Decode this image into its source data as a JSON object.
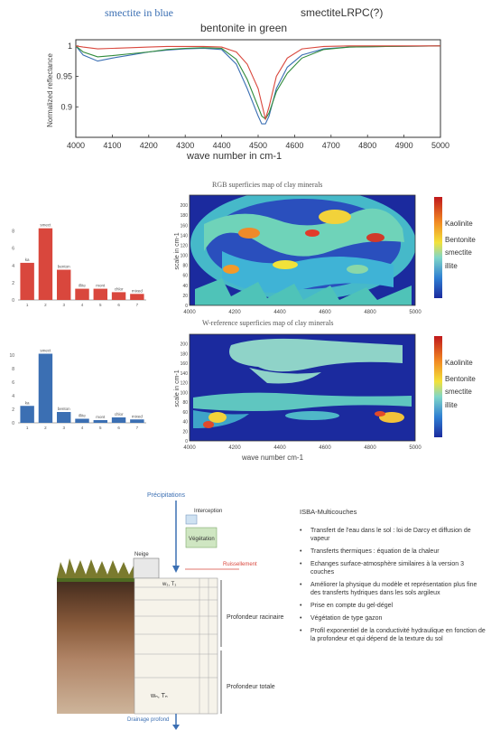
{
  "spectrum": {
    "label_blue": "smectite in blue",
    "label_lrpc": "smectiteLRPC(?)",
    "label_green": "bentonite in green",
    "ylabel": "Normalized reflectance",
    "xlabel": "wave number in cm-1",
    "colors": {
      "blue": "#3b6fb3",
      "green": "#2f8a3a",
      "red": "#d9473d"
    }
  },
  "maps": {
    "top_title": "RGB superficies map of clay minerals",
    "bottom_title": "W-reference superficies map of clay minerals",
    "top_ylabel": "scale in cm-1",
    "bottom_ylabel": "scale in cm-1",
    "bottom_xlabel": "wave number cm-1",
    "colorbar_labels": [
      "Kaolinite",
      "Bentonite",
      "smectite",
      "illite"
    ]
  },
  "histograms": {
    "top_color": "#d9473d",
    "bottom_color": "#3b6fb3"
  },
  "soil": {
    "precip_label": "Précipitations",
    "interception_label": "Interception",
    "veg_label": "Végétation",
    "ruissellement_label": "Ruissellement",
    "neige_label": "Neige",
    "profondeur_racinaire": "Profondeur racinaire",
    "profondeur_totale": "Profondeur totale",
    "drainage_label": "Drainage profond"
  },
  "notes": {
    "title": "ISBA-Multicouches",
    "items": [
      "Transfert de l'eau dans le sol : loi de Darcy et diffusion de vapeur",
      "Transferts thermiques : équation de la chaleur",
      "Echanges surface-atmosphère similaires à la version 3 couches",
      "Améliorer la physique du modèle et représentation plus fine des transferts hydriques dans les sols argileux",
      "Prise en compte du gel-dégel",
      "Végétation de type gazon",
      "Profil exponentiel de la conductivité hydraulique en fonction de la profondeur et qui dépend de la texture du sol"
    ]
  },
  "chart_data": [
    {
      "type": "line",
      "xlabel": "wave number in cm-1",
      "ylabel": "Normalized reflectance",
      "xlim": [
        4000,
        5000
      ],
      "ylim": [
        0.85,
        1.01
      ],
      "x_ticks": [
        4000,
        4100,
        4200,
        4300,
        4400,
        4500,
        4600,
        4700,
        4800,
        4900,
        5000
      ],
      "y_ticks": [
        1,
        0.95,
        0.9
      ],
      "x": [
        4000,
        4020,
        4060,
        4100,
        4150,
        4200,
        4250,
        4300,
        4350,
        4400,
        4440,
        4470,
        4500,
        4510,
        4520,
        4530,
        4550,
        4580,
        4620,
        4680,
        4750,
        4850,
        5000
      ],
      "series": [
        {
          "name": "smectite",
          "color": "#3b6fb3",
          "values": [
            1.0,
            0.985,
            0.975,
            0.98,
            0.985,
            0.99,
            0.993,
            0.995,
            0.996,
            0.994,
            0.97,
            0.93,
            0.885,
            0.872,
            0.872,
            0.885,
            0.93,
            0.965,
            0.985,
            0.995,
            0.998,
            0.999,
            1.0
          ]
        },
        {
          "name": "bentonite",
          "color": "#2f8a3a",
          "values": [
            1.0,
            0.99,
            0.982,
            0.984,
            0.987,
            0.99,
            0.994,
            0.996,
            0.997,
            0.996,
            0.978,
            0.945,
            0.9,
            0.885,
            0.88,
            0.89,
            0.925,
            0.955,
            0.98,
            0.994,
            0.998,
            0.999,
            1.0
          ]
        },
        {
          "name": "smectiteLRPC",
          "color": "#d9473d",
          "values": [
            1.0,
            0.998,
            0.995,
            0.996,
            0.997,
            0.998,
            0.999,
            0.999,
            0.999,
            0.998,
            0.99,
            0.97,
            0.93,
            0.905,
            0.88,
            0.9,
            0.95,
            0.98,
            0.995,
            0.999,
            1.0,
            1.0,
            1.0
          ]
        }
      ]
    },
    {
      "type": "bar",
      "categories": [
        "1",
        "2",
        "3",
        "4",
        "5",
        "6",
        "7"
      ],
      "values": [
        4.3,
        8.3,
        3.5,
        1.3,
        1.3,
        0.9,
        0.7
      ],
      "data_labels": [
        "ka",
        "smect",
        "benton",
        "illite",
        "mont",
        "chlor",
        "mixed"
      ],
      "ylim": [
        0,
        9
      ],
      "y_ticks": [
        0,
        2,
        4,
        6,
        8
      ]
    },
    {
      "type": "bar",
      "categories": [
        "1",
        "2",
        "3",
        "4",
        "5",
        "6",
        "7"
      ],
      "values": [
        2.5,
        10.2,
        1.6,
        0.6,
        0.4,
        0.8,
        0.5
      ],
      "data_labels": [
        "ka",
        "smect",
        "benton",
        "illite",
        "mont",
        "chlor",
        "mixed"
      ],
      "ylim": [
        0,
        12
      ],
      "y_ticks": [
        0,
        2,
        4,
        6,
        8,
        10
      ]
    },
    {
      "type": "heatmap",
      "title": "RGB superficies map of clay minerals",
      "xlim": [
        4000,
        5000
      ],
      "ylim": [
        0,
        220
      ],
      "x_ticks": [
        4000,
        4200,
        4400,
        4600,
        4800,
        5000
      ],
      "y_ticks": [
        0,
        20,
        40,
        60,
        80,
        100,
        120,
        140,
        160,
        180,
        200
      ],
      "ylabel": "scale in cm-1"
    },
    {
      "type": "heatmap",
      "title": "W-reference superficies map of clay minerals",
      "xlim": [
        4000,
        5000
      ],
      "ylim": [
        0,
        220
      ],
      "x_ticks": [
        4000,
        4200,
        4400,
        4600,
        4800,
        5000
      ],
      "y_ticks": [
        0,
        20,
        40,
        60,
        80,
        100,
        120,
        140,
        160,
        180,
        200
      ],
      "xlabel": "wave number cm-1",
      "ylabel": "scale in cm-1"
    }
  ]
}
